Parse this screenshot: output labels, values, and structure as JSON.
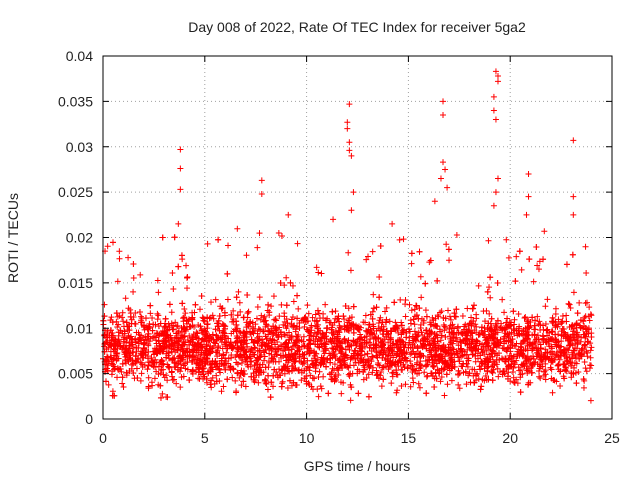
{
  "chart_data": {
    "type": "scatter",
    "title": "Day 008 of 2022, Rate Of TEC Index for receiver 5ga2",
    "xlabel": "GPS time / hours",
    "ylabel": "ROTI / TECUs",
    "xlim": [
      0,
      25
    ],
    "ylim": [
      0,
      0.04
    ],
    "xticks": [
      0,
      5,
      10,
      15,
      20,
      25
    ],
    "xtick_labels": [
      "0",
      "5",
      "10",
      "15",
      "20",
      "25"
    ],
    "yticks": [
      0,
      0.005,
      0.01,
      0.015,
      0.02,
      0.025,
      0.03,
      0.035,
      0.04
    ],
    "ytick_labels": [
      "0",
      "0.005",
      "0.01",
      "0.015",
      "0.02",
      "0.025",
      "0.03",
      "0.035",
      "0.04"
    ],
    "grid": true,
    "marker": "+",
    "color": "#ff0000",
    "x_range_of_data": [
      0,
      24
    ],
    "baseline_band": [
      0.002,
      0.016
    ],
    "notable_points": [
      {
        "x": 0.1,
        "y": 0.0185
      },
      {
        "x": 3.8,
        "y": 0.0297
      },
      {
        "x": 3.8,
        "y": 0.0276
      },
      {
        "x": 3.8,
        "y": 0.0253
      },
      {
        "x": 3.7,
        "y": 0.0215
      },
      {
        "x": 7.8,
        "y": 0.0263
      },
      {
        "x": 7.8,
        "y": 0.0248
      },
      {
        "x": 9.1,
        "y": 0.0225
      },
      {
        "x": 11.3,
        "y": 0.022
      },
      {
        "x": 12.1,
        "y": 0.0347
      },
      {
        "x": 12.0,
        "y": 0.0327
      },
      {
        "x": 12.0,
        "y": 0.032
      },
      {
        "x": 12.1,
        "y": 0.0305
      },
      {
        "x": 12.1,
        "y": 0.0296
      },
      {
        "x": 12.2,
        "y": 0.029
      },
      {
        "x": 12.3,
        "y": 0.025
      },
      {
        "x": 12.2,
        "y": 0.023
      },
      {
        "x": 14.2,
        "y": 0.0215
      },
      {
        "x": 16.7,
        "y": 0.035
      },
      {
        "x": 16.7,
        "y": 0.0335
      },
      {
        "x": 16.7,
        "y": 0.0283
      },
      {
        "x": 16.8,
        "y": 0.0275
      },
      {
        "x": 16.6,
        "y": 0.0265
      },
      {
        "x": 16.9,
        "y": 0.0255
      },
      {
        "x": 16.3,
        "y": 0.024
      },
      {
        "x": 19.3,
        "y": 0.0383
      },
      {
        "x": 19.4,
        "y": 0.0378
      },
      {
        "x": 19.4,
        "y": 0.0372
      },
      {
        "x": 19.2,
        "y": 0.0355
      },
      {
        "x": 19.2,
        "y": 0.034
      },
      {
        "x": 19.3,
        "y": 0.033
      },
      {
        "x": 19.4,
        "y": 0.0265
      },
      {
        "x": 19.3,
        "y": 0.025
      },
      {
        "x": 19.2,
        "y": 0.0235
      },
      {
        "x": 20.9,
        "y": 0.027
      },
      {
        "x": 20.9,
        "y": 0.0245
      },
      {
        "x": 20.8,
        "y": 0.0225
      },
      {
        "x": 23.1,
        "y": 0.0307
      },
      {
        "x": 23.1,
        "y": 0.0245
      },
      {
        "x": 23.1,
        "y": 0.0225
      }
    ]
  }
}
